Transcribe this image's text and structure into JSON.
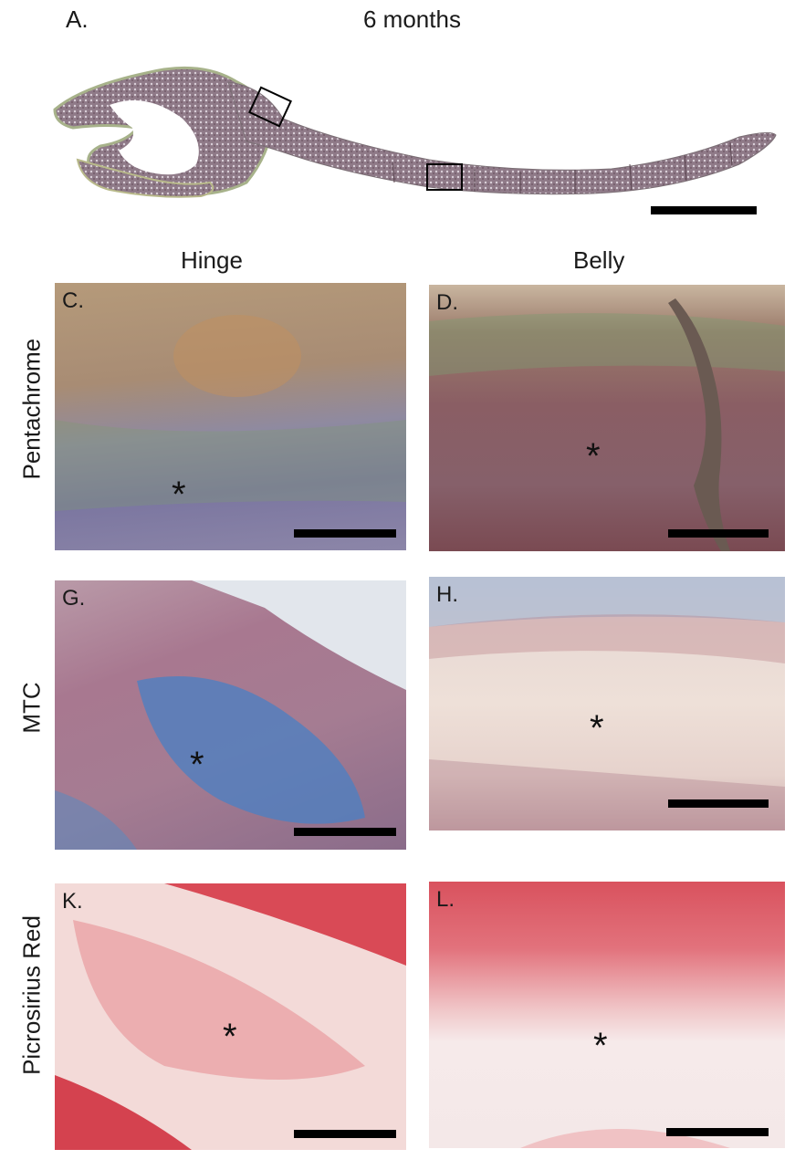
{
  "figure": {
    "panel_a_label": "A.",
    "panel_a_title": "6 months",
    "column_headers": [
      "Hinge",
      "Belly"
    ],
    "row_labels": [
      "Pentachrome",
      "MTC",
      "Picrosirius Red"
    ],
    "panels": [
      {
        "label": "C.",
        "marker": "*"
      },
      {
        "label": "D.",
        "marker": "*"
      },
      {
        "label": "G.",
        "marker": "*"
      },
      {
        "label": "H.",
        "marker": "*"
      },
      {
        "label": "K.",
        "marker": "*"
      },
      {
        "label": "L.",
        "marker": "*"
      }
    ]
  },
  "colors": {
    "pentachrome_base": "#8a6e78",
    "pentachrome_green": "#7f9a72",
    "pentachrome_orange": "#b98a5c",
    "mtc_base": "#e8dcd6",
    "mtc_blue": "#4f7fc0",
    "mtc_red": "#a84a5a",
    "picro_base": "#f4e4e2",
    "picro_red": "#d9545c",
    "scale_bar": "#000000"
  }
}
